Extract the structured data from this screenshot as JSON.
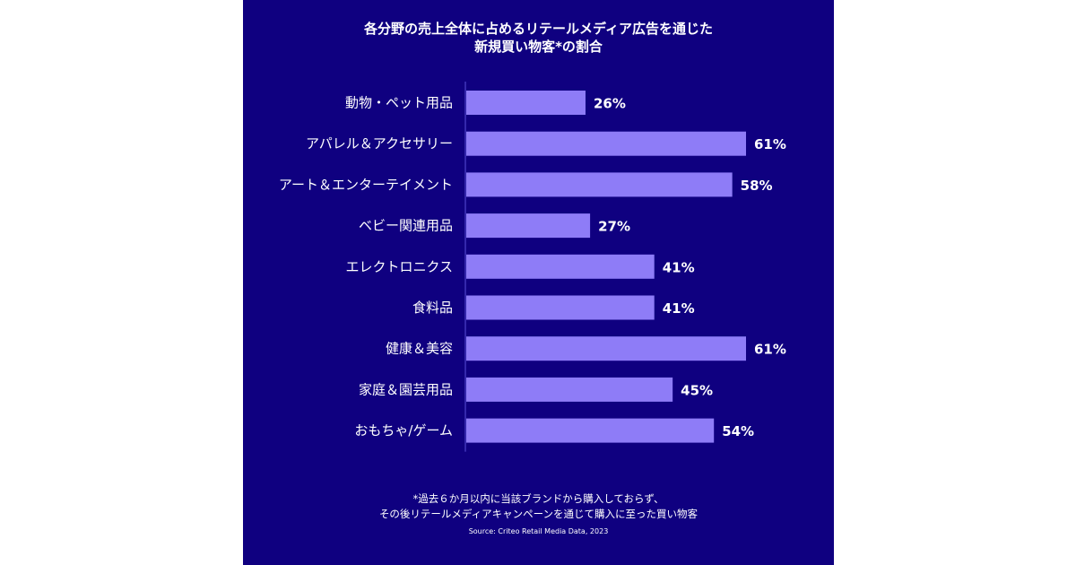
{
  "chart_data": {
    "type": "bar",
    "orientation": "horizontal",
    "title_lines": [
      "各分野の売上全体に占めるリテールメディア広告を通じた",
      "新規買い物客*の割合"
    ],
    "categories": [
      "動物・ペット用品",
      "アパレル＆アクセサリー",
      "アート＆エンターテイメント",
      "ベビー関連用品",
      "エレクトロニクス",
      "食料品",
      "健康＆美容",
      "家庭＆園芸用品",
      "おもちゃ/ゲーム"
    ],
    "values": [
      26,
      61,
      58,
      27,
      41,
      41,
      61,
      45,
      54
    ],
    "value_labels": [
      "26%",
      "61%",
      "58%",
      "27%",
      "41%",
      "41%",
      "61%",
      "45%",
      "54%"
    ],
    "xlim": [
      0,
      61
    ],
    "grid": false,
    "legend": "none"
  },
  "footnote": {
    "line1": "*過去６か月以内に当該ブランドから購入しておらず、",
    "line2": "その後リテールメディアキャンペーンを通じて購入に至った買い物客"
  },
  "source": "Source: Criteo Retail Media Data, 2023",
  "colors": {
    "background": "#0f0080",
    "bar": "#8e7cf7",
    "axis": "#5a4fd8",
    "text": "#ffffff"
  }
}
